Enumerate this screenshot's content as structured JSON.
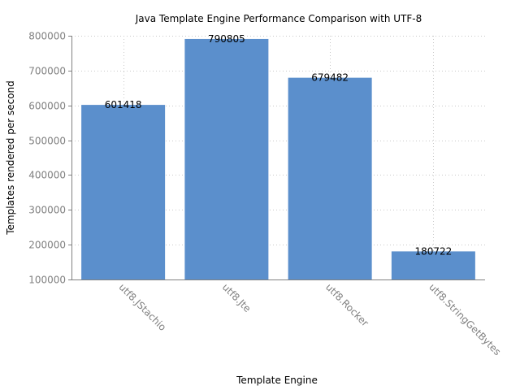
{
  "chart_data": {
    "type": "bar",
    "title": "Java Template Engine Performance Comparison with UTF-8",
    "xlabel": "Template Engine",
    "ylabel": "Templates rendered per second",
    "categories": [
      "utf8.JStachio",
      "utf8.Jte",
      "utf8.Rocker",
      "utf8.StringGetBytes"
    ],
    "values": [
      601418,
      790805,
      679482,
      180722
    ],
    "data_labels": [
      "601418",
      "790805",
      "679482",
      "180722"
    ],
    "ylim": [
      100000,
      800000
    ],
    "yticks": [
      100000,
      200000,
      300000,
      400000,
      500000,
      600000,
      700000,
      800000
    ],
    "ytick_labels": [
      "100000",
      "200000",
      "300000",
      "400000",
      "500000",
      "600000",
      "700000",
      "800000"
    ],
    "grid": true,
    "legend": "none",
    "bar_color": "#5b8fcc",
    "grid_color": "#c8c8c8",
    "axis_color": "#808080"
  }
}
